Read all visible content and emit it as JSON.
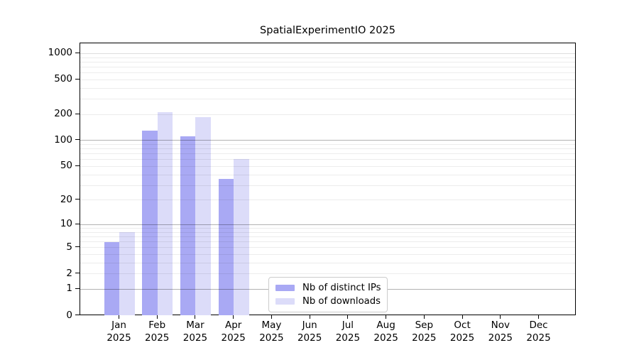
{
  "chart_data": {
    "type": "bar",
    "title": "SpatialExperimentIO 2025",
    "categories": [
      "Jan 2025",
      "Feb 2025",
      "Mar 2025",
      "Apr 2025",
      "May 2025",
      "Jun 2025",
      "Jul 2025",
      "Aug 2025",
      "Sep 2025",
      "Oct 2025",
      "Nov 2025",
      "Dec 2025"
    ],
    "series": [
      {
        "name": "Nb of distinct IPs",
        "color": "#a9a9f4",
        "values": [
          6,
          129,
          111,
          36,
          null,
          null,
          null,
          null,
          null,
          null,
          null,
          null
        ]
      },
      {
        "name": "Nb of downloads",
        "color": "#dcdcf9",
        "values": [
          8,
          211,
          185,
          61,
          null,
          null,
          null,
          null,
          null,
          null,
          null,
          null
        ]
      }
    ],
    "yscale": "log1p",
    "yticks": [
      0,
      1,
      2,
      5,
      10,
      20,
      50,
      100,
      200,
      500,
      1000
    ],
    "ylim": [
      0,
      1310
    ],
    "xlabel": "",
    "ylabel": "",
    "grid": "horizontal, major lines at 1/10/100 plus faint log minor lines",
    "grid_major_values": [
      1,
      10,
      100
    ],
    "grid_semi_values": [
      1000
    ],
    "legend_position": "inside bottom-center",
    "axis_color": "#000000",
    "background_color": "#ffffff"
  }
}
